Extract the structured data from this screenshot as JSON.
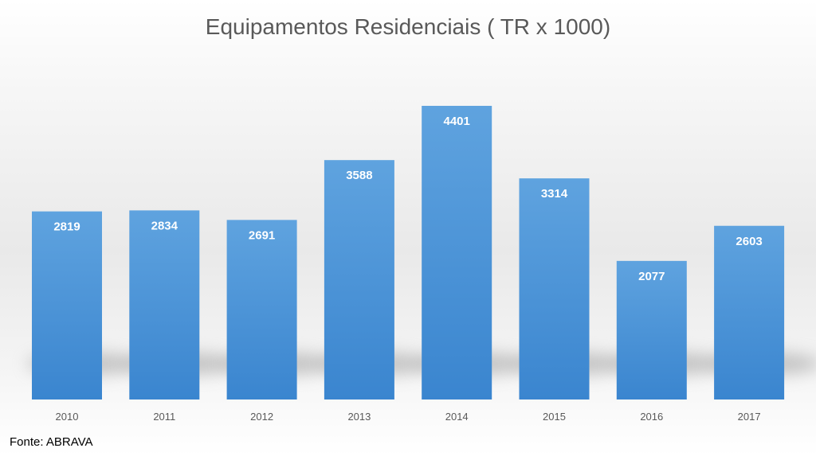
{
  "chart_data": {
    "type": "bar",
    "title": "Equipamentos Residenciais ( TR x 1000)",
    "categories": [
      "2010",
      "2011",
      "2012",
      "2013",
      "2014",
      "2015",
      "2016",
      "2017"
    ],
    "values": [
      2819,
      2834,
      2691,
      3588,
      4401,
      3314,
      2077,
      2603
    ],
    "xlabel": "",
    "ylabel": "",
    "ylim": [
      0,
      4401
    ],
    "grid": false,
    "legend": "none",
    "data_labels": true,
    "bar_color": "#4a8fd4",
    "bar_color_light": "#5ea2de",
    "label_color": "#ffffff"
  },
  "source": "Fonte: ABRAVA"
}
